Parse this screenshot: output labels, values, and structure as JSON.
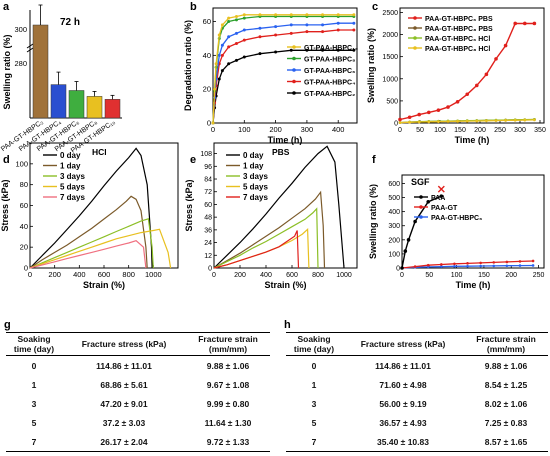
{
  "panel_letters": [
    "a",
    "b",
    "c",
    "d",
    "e",
    "f",
    "g",
    "h"
  ],
  "colors": {
    "black": "#000000",
    "brown": "#7b5a2a",
    "green": "#2ca02c",
    "blue": "#2a62f0",
    "red": "#e0201c",
    "yellow": "#e8c020",
    "olive": "#a18a1c",
    "maroon": "#8b1c1c"
  },
  "chart_data": [
    {
      "panel": "a",
      "type": "bar",
      "annotation": "72 h",
      "ylabel": "Swelling ratio (%)",
      "y_break": true,
      "categories": [
        "PAA-GT-HBPC₂",
        "PAA-GT-HBPC₄",
        "PAA-GT-HBPC₆",
        "PAA-GT-HBPC₈",
        "PAA-GT-HBPC₁₀"
      ],
      "values": [
        300,
        170,
        140,
        110,
        95
      ],
      "error": [
        40,
        25,
        18,
        10,
        8
      ],
      "colors": [
        "#a0723a",
        "#2a4fd0",
        "#3fae3f",
        "#e8c020",
        "#e03030"
      ],
      "yticks_top": [
        "300"
      ],
      "yticks_bottom": [
        "280"
      ]
    },
    {
      "panel": "b",
      "type": "line",
      "xlabel": "Time (h)",
      "ylabel": "Degradation ratio (%)",
      "xlim": [
        0,
        460
      ],
      "ylim": [
        0,
        68
      ],
      "xticks": [
        0,
        100,
        200,
        300,
        400
      ],
      "yticks": [
        0,
        20,
        40,
        60
      ],
      "x": [
        0,
        5,
        10,
        20,
        30,
        50,
        75,
        100,
        150,
        200,
        250,
        300,
        350,
        400,
        450
      ],
      "series": [
        {
          "name": "GT-PAA-HBPC₁₀",
          "color": "#e8c020",
          "values": [
            0,
            20,
            35,
            52,
            58,
            62,
            63,
            64,
            64,
            64,
            64,
            64,
            64,
            64,
            64
          ]
        },
        {
          "name": "GT-PAA-HBPC₈",
          "color": "#2ca02c",
          "values": [
            0,
            19,
            33,
            50,
            56,
            60,
            61,
            62,
            63,
            63,
            63,
            63,
            63,
            63,
            63
          ]
        },
        {
          "name": "GT-PAA-HBPC₆",
          "color": "#2a62f0",
          "values": [
            0,
            15,
            26,
            40,
            46,
            51,
            53,
            55,
            56,
            57,
            58,
            58,
            58,
            59,
            59
          ]
        },
        {
          "name": "GT-PAA-HBPC₄",
          "color": "#e0201c",
          "values": [
            0,
            12,
            22,
            35,
            40,
            45,
            47,
            49,
            51,
            52,
            53,
            54,
            54,
            55,
            55
          ]
        },
        {
          "name": "GT-PAA-HBPC₂",
          "color": "#000000",
          "values": [
            0,
            9,
            16,
            26,
            31,
            35,
            37,
            39,
            41,
            42,
            43,
            43,
            43,
            43,
            43
          ]
        }
      ]
    },
    {
      "panel": "c",
      "type": "line",
      "xlabel": "Time (h)",
      "ylabel": "Swelling ratio (%)",
      "xlim": [
        0,
        360
      ],
      "ylim": [
        0,
        2600
      ],
      "xticks": [
        0,
        50,
        100,
        150,
        200,
        250,
        300,
        350
      ],
      "yticks": [
        0,
        500,
        1000,
        1500,
        2000,
        2500
      ],
      "series": [
        {
          "name": "PAA-GT-HBPC₆ PBS",
          "color": "#e0201c",
          "x": [
            0,
            24,
            48,
            72,
            96,
            120,
            144,
            168,
            192,
            216,
            240,
            264,
            288,
            312,
            336
          ],
          "values": [
            80,
            130,
            190,
            240,
            290,
            360,
            480,
            650,
            850,
            1100,
            1450,
            1750,
            2250,
            2250,
            2250
          ]
        },
        {
          "name": "PAA-GT-HBPC₈ PBS",
          "color": "#7b5a2a",
          "x": [
            0,
            24,
            48,
            72,
            96,
            120,
            144,
            168,
            192,
            216,
            240,
            264,
            288,
            312,
            336
          ],
          "values": [
            10,
            20,
            28,
            34,
            38,
            42,
            46,
            50,
            54,
            58,
            62,
            66,
            70,
            74,
            78
          ]
        },
        {
          "name": "PAA-GT-HBPC₆ HCl",
          "color": "#8cbf26",
          "x": [
            0,
            24,
            48,
            72,
            96,
            120,
            144,
            168,
            192,
            216,
            240,
            264,
            288,
            312,
            336
          ],
          "values": [
            10,
            22,
            30,
            36,
            40,
            44,
            48,
            52,
            56,
            60,
            64,
            68,
            72,
            76,
            80
          ]
        },
        {
          "name": "PAA-GT-HBPC₈ HCl",
          "color": "#e8c020",
          "x": [
            0,
            24,
            48,
            72,
            96,
            120,
            144,
            168,
            192,
            216,
            240,
            264,
            288,
            312,
            336
          ],
          "values": [
            8,
            16,
            22,
            26,
            30,
            34,
            38,
            42,
            46,
            50,
            54,
            58,
            62,
            66,
            70
          ]
        }
      ]
    },
    {
      "panel": "d",
      "type": "line",
      "annotation": "HCl",
      "xlabel": "Strain (%)",
      "ylabel": "Stress (kPa)",
      "xlim": [
        0,
        1200
      ],
      "ylim": [
        0,
        120
      ],
      "xticks": [
        0,
        200,
        400,
        600,
        800,
        1000
      ],
      "yticks": [
        0,
        20,
        40,
        60,
        80,
        100
      ],
      "series": [
        {
          "name": "0 day",
          "color": "#000000",
          "x": [
            0,
            100,
            200,
            300,
            400,
            500,
            600,
            700,
            800,
            860,
            900,
            950,
            985,
            990
          ],
          "values": [
            0,
            12,
            24,
            37,
            50,
            64,
            79,
            93,
            106,
            114.86,
            108,
            80,
            20,
            0
          ]
        },
        {
          "name": "1 day",
          "color": "#7b5a2a",
          "x": [
            0,
            100,
            200,
            300,
            400,
            500,
            600,
            700,
            780,
            820,
            860,
            900,
            940,
            950
          ],
          "values": [
            0,
            8,
            15,
            22,
            30,
            38,
            47,
            56,
            64,
            68.86,
            66,
            55,
            20,
            0
          ]
        },
        {
          "name": "3 days",
          "color": "#8cbf26",
          "x": [
            0,
            100,
            200,
            300,
            400,
            500,
            600,
            700,
            800,
            900,
            960,
            990,
            1000
          ],
          "values": [
            0,
            5,
            10,
            15,
            20,
            25,
            30,
            35,
            40,
            45,
            47.2,
            20,
            0
          ]
        },
        {
          "name": "5 days",
          "color": "#e8c020",
          "x": [
            0,
            100,
            200,
            300,
            400,
            500,
            600,
            700,
            800,
            900,
            1000,
            1050,
            1120,
            1140
          ],
          "values": [
            0,
            4,
            8,
            12,
            16,
            20,
            24,
            28,
            31,
            34,
            36,
            37.2,
            15,
            0
          ]
        },
        {
          "name": "7 days",
          "color": "#f07080",
          "x": [
            0,
            100,
            200,
            300,
            400,
            500,
            600,
            700,
            800,
            860,
            920,
            940
          ],
          "values": [
            0,
            3,
            6,
            9,
            12,
            15,
            18,
            21,
            24,
            26.17,
            20,
            0
          ]
        }
      ]
    },
    {
      "panel": "e",
      "type": "line",
      "annotation": "PBS",
      "xlabel": "Strain (%)",
      "ylabel": "Stress (kPa)",
      "xlim": [
        0,
        1100
      ],
      "ylim": [
        0,
        118
      ],
      "xticks": [
        0,
        200,
        400,
        600,
        800,
        1000
      ],
      "yticks": [
        0,
        12,
        24,
        36,
        48,
        60,
        72,
        84,
        96,
        108
      ],
      "series": [
        {
          "name": "0 day",
          "color": "#000000",
          "x": [
            0,
            100,
            200,
            300,
            400,
            500,
            600,
            700,
            800,
            870,
            930,
            960,
            1000
          ],
          "values": [
            0,
            12,
            24,
            37,
            51,
            66,
            80,
            95,
            108,
            114.86,
            100,
            60,
            0
          ]
        },
        {
          "name": "1 day",
          "color": "#7b5a2a",
          "x": [
            0,
            100,
            200,
            300,
            400,
            500,
            600,
            700,
            780,
            820,
            840,
            850
          ],
          "values": [
            0,
            7,
            14,
            22,
            30,
            38,
            47,
            56,
            65,
            71.6,
            40,
            0
          ]
        },
        {
          "name": "3 days",
          "color": "#8cbf26",
          "x": [
            0,
            100,
            200,
            300,
            400,
            500,
            600,
            700,
            760,
            790,
            800
          ],
          "values": [
            0,
            6,
            12,
            19,
            25,
            32,
            39,
            46,
            52,
            56,
            0
          ]
        },
        {
          "name": "5 days",
          "color": "#e8c020",
          "x": [
            0,
            100,
            200,
            300,
            400,
            500,
            600,
            680,
            720,
            730
          ],
          "values": [
            0,
            3,
            7,
            11,
            15,
            20,
            26,
            32,
            36.57,
            0
          ]
        },
        {
          "name": "7 days",
          "color": "#e0201c",
          "x": [
            0,
            100,
            200,
            300,
            400,
            500,
            560,
            620,
            640,
            650
          ],
          "values": [
            0,
            3,
            7,
            11,
            15,
            20,
            25,
            30,
            35.4,
            0
          ]
        }
      ]
    },
    {
      "panel": "f",
      "type": "line",
      "annotation": "SGF",
      "xlabel": "Time (h)",
      "ylabel": "Swelling ratio (%)",
      "xlim": [
        0,
        260
      ],
      "ylim": [
        0,
        660
      ],
      "xticks": [
        0,
        50,
        100,
        150,
        200,
        250
      ],
      "yticks": [
        0,
        100,
        200,
        300,
        400,
        500,
        600
      ],
      "series": [
        {
          "name": "PAA",
          "color": "#000000",
          "x": [
            0,
            6,
            12,
            24,
            48,
            72
          ],
          "values": [
            0,
            120,
            200,
            330,
            470,
            510
          ]
        },
        {
          "name": "PAA-GT",
          "color": "#e0201c",
          "x": [
            0,
            24,
            48,
            72,
            96,
            120,
            144,
            168,
            192,
            216,
            240
          ],
          "values": [
            0,
            10,
            20,
            25,
            30,
            33,
            36,
            40,
            43,
            47,
            50
          ]
        },
        {
          "name": "PAA-GT-HBPC₆",
          "color": "#2a62f0",
          "x": [
            0,
            24,
            48,
            72,
            96,
            120,
            144,
            168,
            192,
            216,
            240
          ],
          "values": [
            0,
            5,
            8,
            10,
            12,
            13,
            14,
            15,
            16,
            17,
            18
          ]
        }
      ]
    }
  ],
  "tables": [
    {
      "panel": "g",
      "headers": [
        "Soaking time (day)",
        "Fracture stress (kPa)",
        "Fracture strain (mm/mm)"
      ],
      "rows": [
        [
          "0",
          "114.86 ± 11.01",
          "9.88 ± 1.06"
        ],
        [
          "1",
          "68.86 ± 5.61",
          "9.67 ± 1.08"
        ],
        [
          "3",
          "47.20 ± 9.01",
          "9.99 ± 0.80"
        ],
        [
          "5",
          "37.2 ± 3.03",
          "11.64 ± 1.30"
        ],
        [
          "7",
          "26.17 ± 2.04",
          "9.72 ± 1.33"
        ]
      ]
    },
    {
      "panel": "h",
      "headers": [
        "Soaking time (day)",
        "Fracture stress (kPa)",
        "Fracture strain (mm/mm)"
      ],
      "rows": [
        [
          "0",
          "114.86 ± 11.01",
          "9.88 ± 1.06"
        ],
        [
          "1",
          "71.60 ± 4.98",
          "8.54 ± 1.25"
        ],
        [
          "3",
          "56.00 ± 9.19",
          "8.02 ± 1.06"
        ],
        [
          "5",
          "36.57 ± 4.93",
          "7.25 ± 0.83"
        ],
        [
          "7",
          "35.40 ± 10.83",
          "8.57 ± 1.65"
        ]
      ]
    }
  ]
}
